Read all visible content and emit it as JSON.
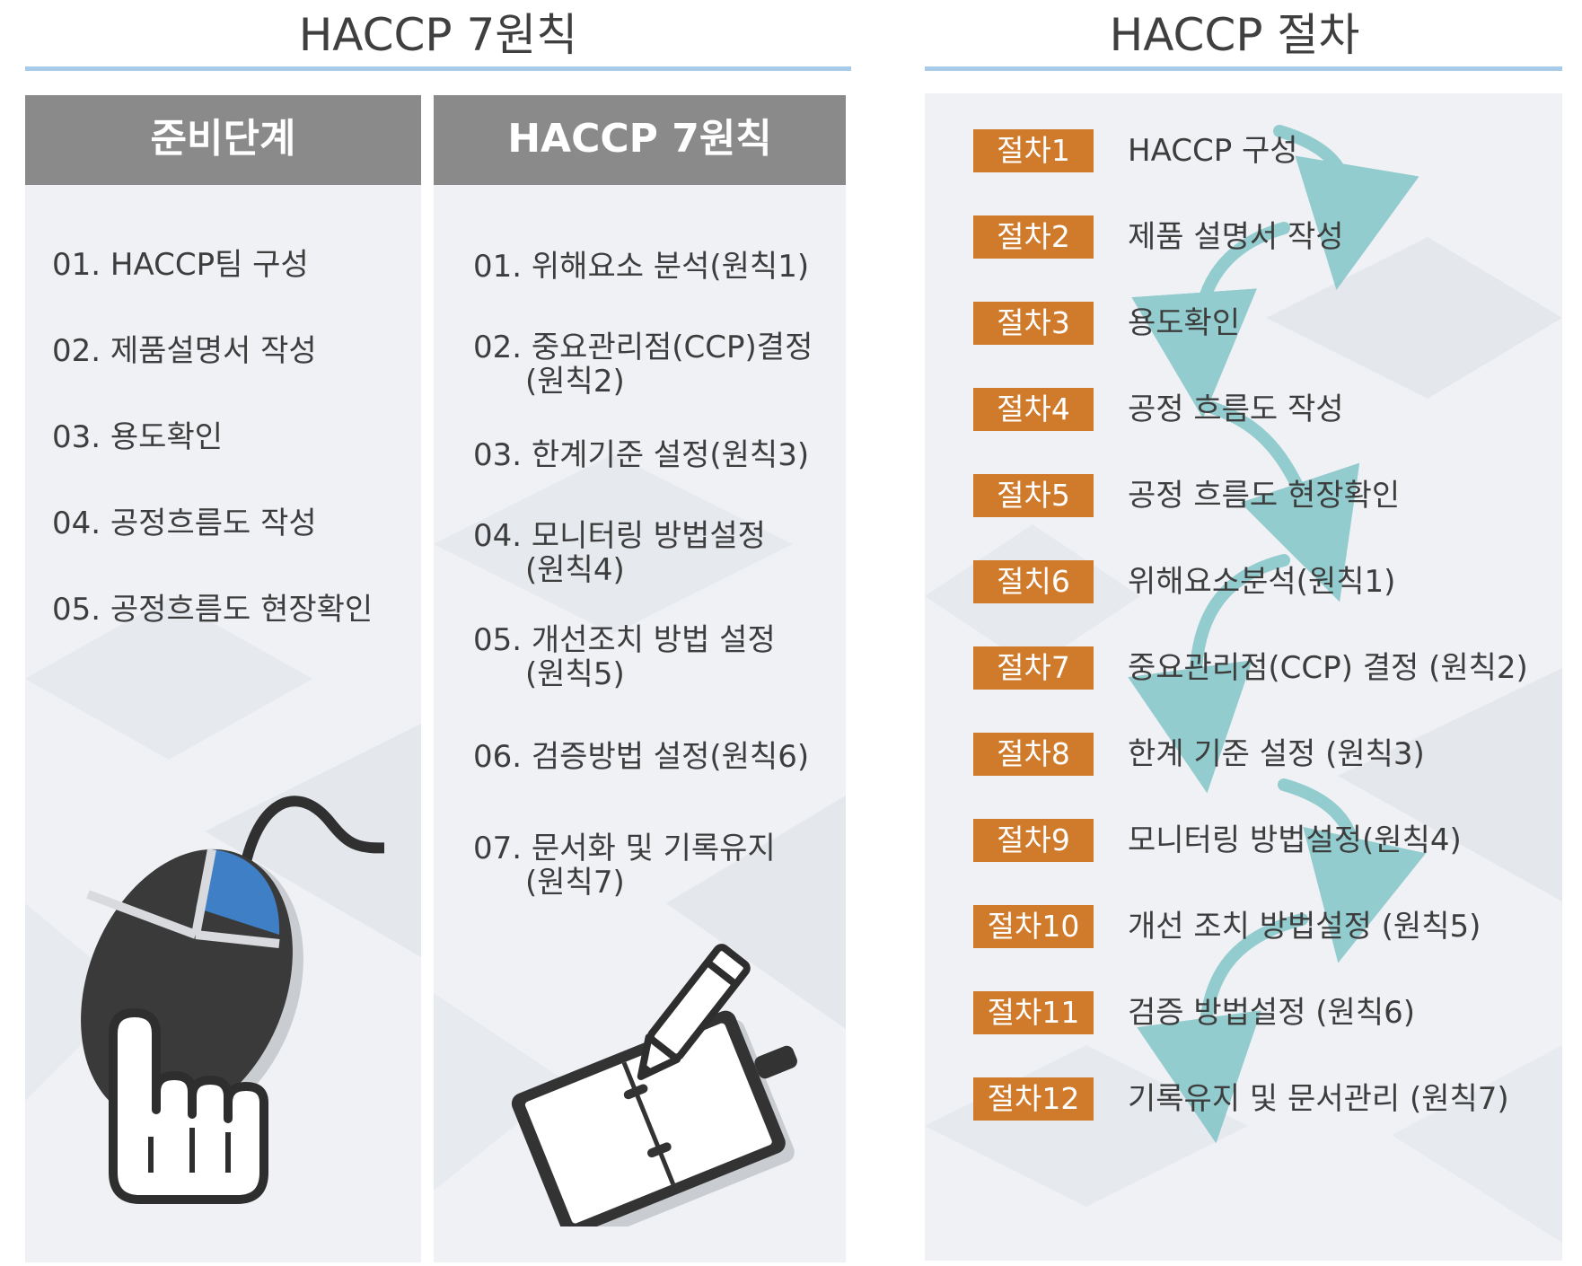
{
  "left_section": {
    "title": "HACCP 7원칙",
    "prep_column": {
      "header": "준비단계",
      "items": [
        "01. HACCP팀 구성",
        "02. 제품설명서 작성",
        "03. 용도확인",
        "04. 공정흐름도 작성",
        "05. 공정흐름도 현장확인"
      ]
    },
    "principles_column": {
      "header": "HACCP 7원칙",
      "items": [
        {
          "line1": "01. 위해요소 분석(원칙1)",
          "line2": ""
        },
        {
          "line1": "02. 중요관리점(CCP)결정",
          "line2": "(원칙2)"
        },
        {
          "line1": "03. 한계기준 설정(원칙3)",
          "line2": ""
        },
        {
          "line1": "04. 모니터링 방법설정",
          "line2": "(원칙4)"
        },
        {
          "line1": "05. 개선조치 방법 설정",
          "line2": "(원칙5)"
        },
        {
          "line1": "06. 검증방법 설정(원칙6)",
          "line2": ""
        },
        {
          "line1": "07. 문서화 및 기록유지",
          "line2": "(원칙7)"
        }
      ]
    }
  },
  "right_section": {
    "title": "HACCP 절차",
    "steps": [
      {
        "badge": "절차1",
        "label": "HACCP 구성"
      },
      {
        "badge": "절차2",
        "label": "제품 설명서 작성"
      },
      {
        "badge": "절차3",
        "label": "용도확인"
      },
      {
        "badge": "절차4",
        "label": "공정 흐름도 작성"
      },
      {
        "badge": "절차5",
        "label": "공정 흐름도 현장확인"
      },
      {
        "badge": "절치6",
        "label": "위해요소분석(원칙1)"
      },
      {
        "badge": "절차7",
        "label": "중요관리점(CCP) 결정 (원칙2)"
      },
      {
        "badge": "절차8",
        "label": "한계 기준 설정 (원칙3)"
      },
      {
        "badge": "절차9",
        "label": "모니터링 방법설정(원칙4)"
      },
      {
        "badge": "절차10",
        "label": "개선 조치 방법설정 (원칙5)"
      },
      {
        "badge": "절차11",
        "label": "검증 방법설정 (원칙6)"
      },
      {
        "badge": "절차12",
        "label": "기록유지 및 문서관리 (원칙7)"
      }
    ]
  },
  "colors": {
    "header_gray": "#8a8a8a",
    "badge_orange": "#d07a2b",
    "title_line_blue": "#a8cbe9",
    "arrow_teal": "#7cc3c6",
    "mouse_blue": "#3f7fc6"
  },
  "icons": [
    "mouse-pointer-hand-icon",
    "notebook-pencil-icon",
    "flow-arrow-icon"
  ]
}
